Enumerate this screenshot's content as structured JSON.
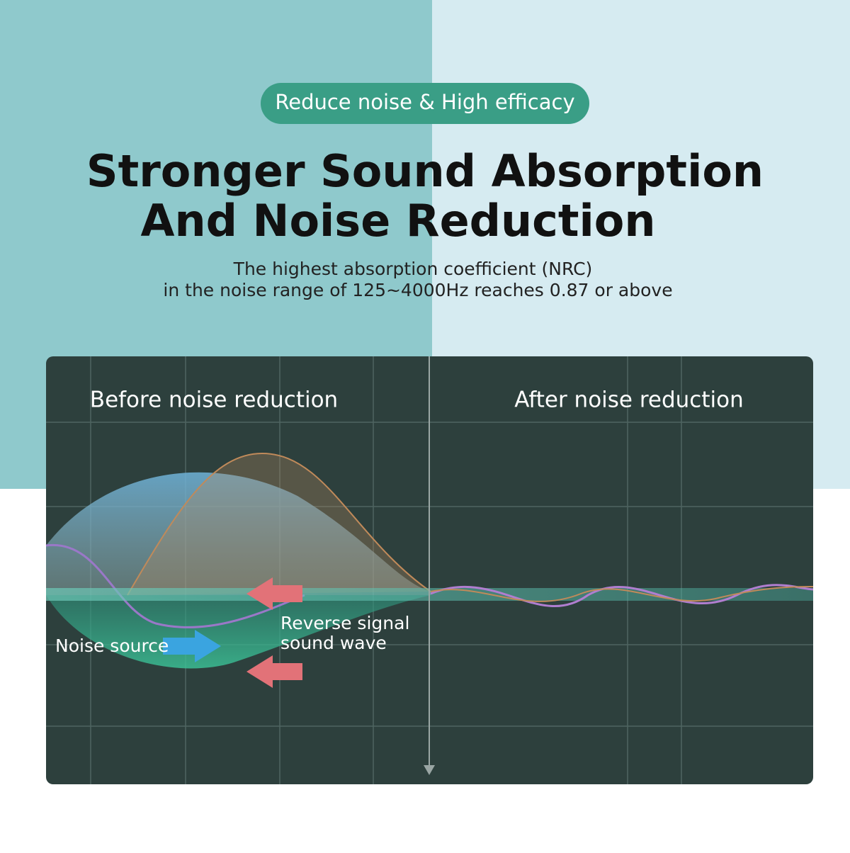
{
  "header": {
    "badge": "Reduce noise & High efficacy",
    "title_lines": [
      "Stronger Sound Absorption",
      "And Noise Reduction"
    ],
    "subtitle_lines": [
      "The highest absorption coefficient (NRC)",
      "in the noise range of 125~4000Hz reaches 0.87 or above"
    ]
  },
  "panel": {
    "left_label": "Before noise reduction",
    "right_label": "After noise reduction",
    "noise_label": "Noise source",
    "reverse_label_lines": [
      "Reverse signal",
      "sound wave"
    ]
  }
}
